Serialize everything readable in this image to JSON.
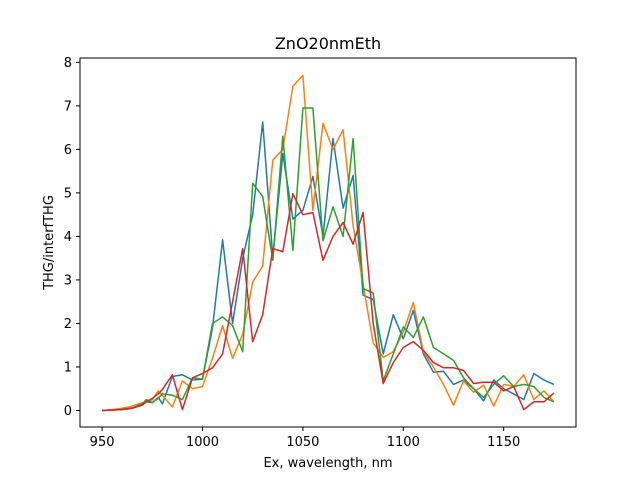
{
  "chart_data": {
    "type": "line",
    "title": "ZnO20nmEth",
    "xlabel": "Ex, wavelength, nm",
    "ylabel": "THG/interfTHG",
    "xlim": [
      939,
      1186
    ],
    "ylim": [
      -0.38,
      8.1
    ],
    "xticks": [
      950,
      1000,
      1050,
      1100,
      1150
    ],
    "yticks": [
      0,
      1,
      2,
      3,
      4,
      5,
      6,
      7,
      8
    ],
    "grid": false,
    "x": [
      950,
      955,
      960,
      965,
      970,
      972,
      975,
      978,
      980,
      985,
      990,
      995,
      1000,
      1005,
      1010,
      1015,
      1020,
      1025,
      1030,
      1035,
      1040,
      1045,
      1050,
      1055,
      1060,
      1065,
      1070,
      1075,
      1080,
      1085,
      1090,
      1095,
      1100,
      1105,
      1110,
      1115,
      1120,
      1125,
      1130,
      1135,
      1140,
      1145,
      1150,
      1155,
      1160,
      1165,
      1170,
      1175
    ],
    "series": [
      {
        "color": "#1f77b4",
        "values": [
          0.0,
          0.01,
          0.02,
          0.05,
          0.15,
          0.2,
          0.18,
          0.3,
          0.15,
          0.78,
          0.82,
          0.7,
          0.72,
          1.9,
          3.92,
          2.0,
          3.5,
          4.5,
          6.63,
          3.52,
          5.9,
          4.4,
          4.6,
          5.38,
          4.0,
          6.25,
          4.65,
          5.4,
          2.65,
          2.55,
          1.3,
          2.2,
          1.65,
          2.3,
          1.3,
          0.88,
          0.9,
          0.6,
          0.7,
          0.5,
          0.22,
          0.7,
          0.5,
          0.38,
          0.25,
          0.85,
          0.7,
          0.6
        ]
      },
      {
        "color": "#ff7f0e",
        "values": [
          0.0,
          0.02,
          0.05,
          0.1,
          0.18,
          0.2,
          0.25,
          0.45,
          0.35,
          0.08,
          0.68,
          0.5,
          0.55,
          1.2,
          1.95,
          1.2,
          1.75,
          2.95,
          3.32,
          5.75,
          6.0,
          7.45,
          7.7,
          4.6,
          6.6,
          6.0,
          6.45,
          4.25,
          2.9,
          1.55,
          1.22,
          1.35,
          1.8,
          2.48,
          1.35,
          1.0,
          0.6,
          0.12,
          0.68,
          0.42,
          0.58,
          0.1,
          0.6,
          0.55,
          0.82,
          0.25,
          0.45,
          0.2
        ]
      },
      {
        "color": "#2ca02c",
        "values": [
          0.0,
          0.01,
          0.03,
          0.06,
          0.15,
          0.25,
          0.18,
          0.28,
          0.38,
          0.35,
          0.25,
          0.75,
          0.72,
          2.0,
          2.15,
          1.95,
          1.35,
          5.22,
          4.92,
          3.45,
          6.3,
          3.68,
          6.95,
          6.95,
          3.9,
          4.68,
          4.0,
          6.25,
          2.8,
          2.7,
          0.68,
          1.3,
          1.92,
          1.68,
          2.15,
          1.45,
          1.3,
          1.15,
          0.75,
          0.5,
          0.3,
          0.6,
          0.8,
          0.55,
          0.6,
          0.55,
          0.3,
          0.2
        ]
      },
      {
        "color": "#d62728",
        "values": [
          0.0,
          0.01,
          0.02,
          0.05,
          0.12,
          0.2,
          0.28,
          0.38,
          0.48,
          0.82,
          0.02,
          0.75,
          0.85,
          0.98,
          1.3,
          2.5,
          3.72,
          1.58,
          2.2,
          3.72,
          3.65,
          4.98,
          4.5,
          4.55,
          3.45,
          4.0,
          4.32,
          3.82,
          4.55,
          2.0,
          0.62,
          1.1,
          1.45,
          1.58,
          1.38,
          1.1,
          0.98,
          0.98,
          0.92,
          0.62,
          0.65,
          0.65,
          0.45,
          0.55,
          0.02,
          0.2,
          0.2,
          0.4
        ]
      }
    ]
  }
}
